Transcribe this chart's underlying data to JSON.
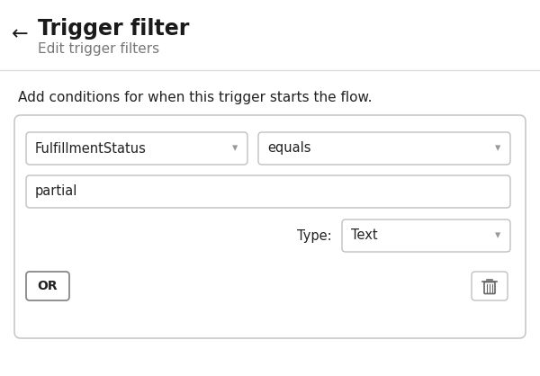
{
  "bg_color": "#ffffff",
  "title": "Trigger filter",
  "subtitle": "Edit trigger filters",
  "back_arrow": "←",
  "description": "Add conditions for when this trigger starts the flow.",
  "dropdown1_label": "FulfillmentStatus",
  "dropdown2_label": "equals",
  "input_value": "partial",
  "type_label": "Type:",
  "type_dropdown": "Text",
  "or_button": "OR",
  "separator_color": "#dddddd",
  "border_color": "#cccccc",
  "title_color": "#1a1a1a",
  "subtitle_color": "#777777",
  "text_color": "#222222",
  "dropdown_arrow_color": "#999999",
  "trash_color": "#666666",
  "font_size_title": 17,
  "font_size_subtitle": 11,
  "font_size_desc": 11,
  "font_size_widget": 10.5
}
